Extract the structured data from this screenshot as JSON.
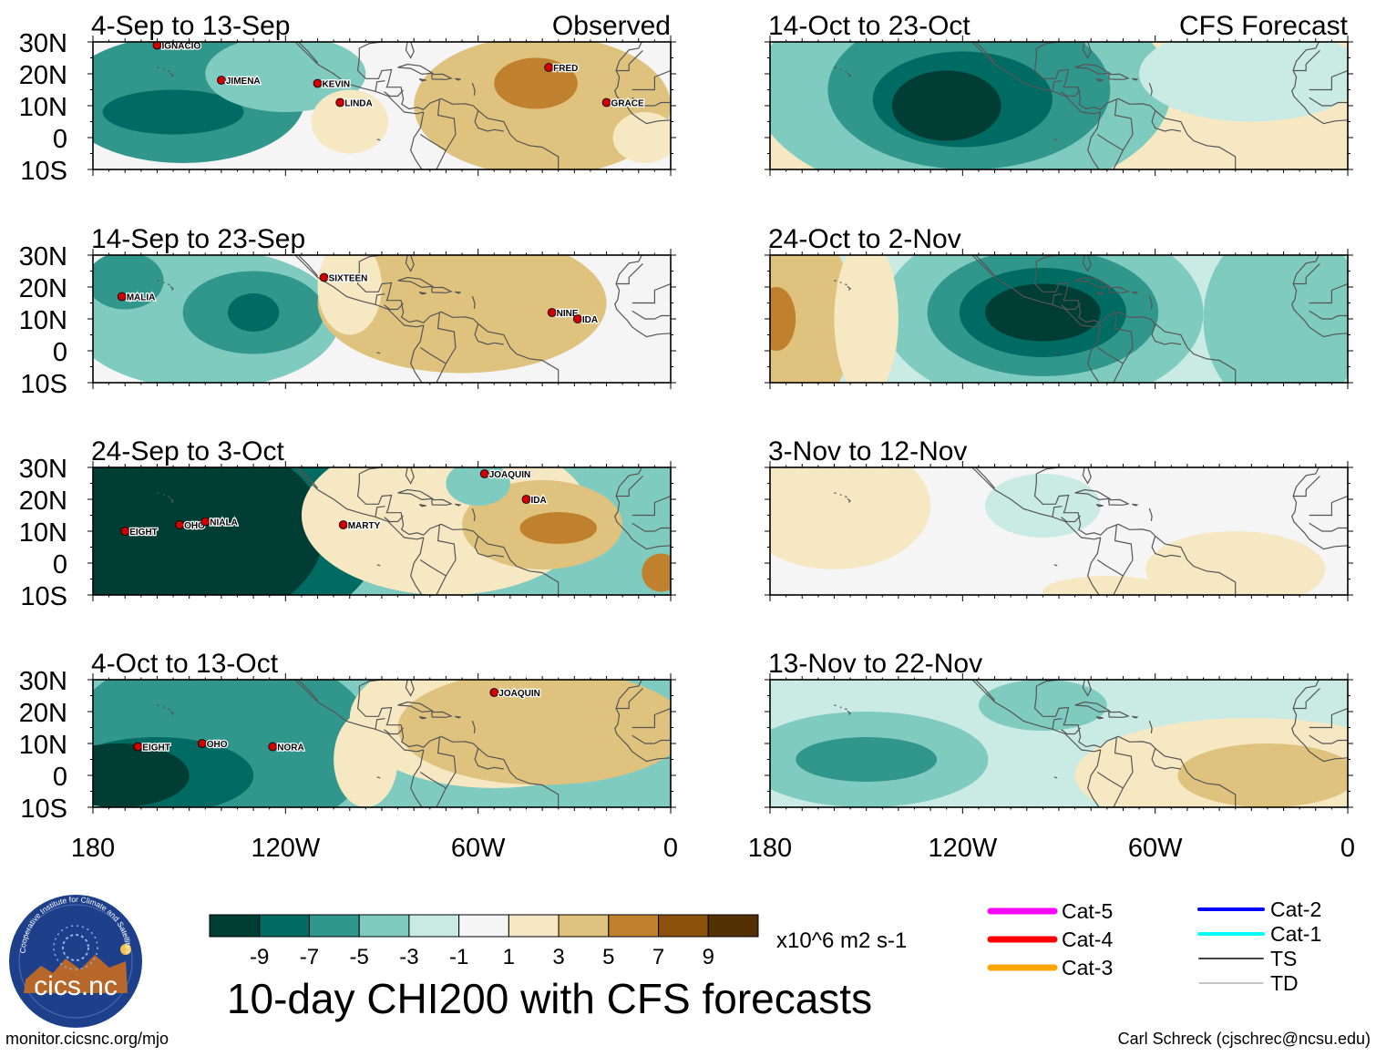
{
  "labels": {
    "observed": "Observed",
    "forecast": "CFS Forecast",
    "main_title": "10-day CHI200 with CFS forecasts",
    "units": "x10^6 m2 s-1",
    "logo_text": "cics.nc",
    "logo_arc": "Cooperative Institute for Climate and Satellites",
    "url": "monitor.cicsnc.org/mjo",
    "author": "Carl Schreck (cjschrec@ncsu.edu)"
  },
  "axes": {
    "lat_ticks": [
      "30N",
      "20N",
      "10N",
      "0",
      "10S"
    ],
    "lon_ticks": [
      "180",
      "120W",
      "60W",
      "0"
    ]
  },
  "colorbar": {
    "colors": [
      "#003e35",
      "#006b63",
      "#31968c",
      "#7fcbbf",
      "#c9ebe3",
      "#f5f5f5",
      "#f6e8c3",
      "#dfc27d",
      "#bf812d",
      "#8c510a",
      "#543005"
    ],
    "ticks": [
      "-9",
      "-7",
      "-5",
      "-3",
      "-1",
      "1",
      "3",
      "5",
      "7",
      "9"
    ]
  },
  "legend": [
    {
      "label": "Cat-5",
      "color": "#ff00ff",
      "width": 7
    },
    {
      "label": "Cat-4",
      "color": "#ff0000",
      "width": 7
    },
    {
      "label": "Cat-3",
      "color": "#ffa500",
      "width": 7
    },
    {
      "label": "Cat-2",
      "color": "#0000ff",
      "width": 4
    },
    {
      "label": "Cat-1",
      "color": "#00ffff",
      "width": 4
    },
    {
      "label": "TS",
      "color": "#444444",
      "width": 2
    },
    {
      "label": "TD",
      "color": "#888888",
      "width": 1
    }
  ],
  "chart_data": {
    "type": "map",
    "variable": "10-day CHI200 (200-hPa velocity potential anomaly)",
    "units": "x10^6 m2 s-1",
    "lon_range": [
      -180,
      0
    ],
    "lat_range": [
      -10,
      30
    ],
    "panels": [
      {
        "title": "4-Sep to 13-Sep",
        "kind": "observed",
        "base": 2,
        "blobs": [
          {
            "lon": -152,
            "lat": 12,
            "rx": 38,
            "ry": 20,
            "level": -5
          },
          {
            "lon": -155,
            "lat": 8,
            "rx": 22,
            "ry": 7,
            "level": -7
          },
          {
            "lon": -120,
            "lat": 20,
            "rx": 25,
            "ry": 12,
            "level": -3
          },
          {
            "lon": -100,
            "lat": 5,
            "rx": 12,
            "ry": 10,
            "level": 1
          },
          {
            "lon": -40,
            "lat": 10,
            "rx": 40,
            "ry": 22,
            "level": 3
          },
          {
            "lon": -42,
            "lat": 17,
            "rx": 13,
            "ry": 8,
            "level": 5
          },
          {
            "lon": -8,
            "lat": 0,
            "rx": 10,
            "ry": 8,
            "level": 1
          }
        ],
        "storms": [
          {
            "name": "IGNACIO",
            "lon": -160,
            "lat": 29
          },
          {
            "name": "JIMENA",
            "lon": -140,
            "lat": 18
          },
          {
            "name": "KEVIN",
            "lon": -110,
            "lat": 17
          },
          {
            "name": "LINDA",
            "lon": -103,
            "lat": 11
          },
          {
            "name": "FRED",
            "lon": -38,
            "lat": 22
          },
          {
            "name": "GRACE",
            "lon": -20,
            "lat": 11
          }
        ]
      },
      {
        "title": "14-Sep to 23-Sep",
        "kind": "observed",
        "base": 2,
        "blobs": [
          {
            "lon": -145,
            "lat": 10,
            "rx": 42,
            "ry": 22,
            "level": -3
          },
          {
            "lon": -130,
            "lat": 12,
            "rx": 22,
            "ry": 13,
            "level": -5
          },
          {
            "lon": -170,
            "lat": 22,
            "rx": 12,
            "ry": 9,
            "level": -5
          },
          {
            "lon": -130,
            "lat": 12,
            "rx": 8,
            "ry": 6,
            "level": -7
          },
          {
            "lon": -65,
            "lat": 15,
            "rx": 45,
            "ry": 22,
            "level": 3
          },
          {
            "lon": -100,
            "lat": 20,
            "rx": 10,
            "ry": 15,
            "level": 1
          }
        ],
        "storms": [
          {
            "name": "MALIA",
            "lon": -171,
            "lat": 17
          },
          {
            "name": "SIXTEEN",
            "lon": -108,
            "lat": 23
          },
          {
            "name": "NINE",
            "lon": -37,
            "lat": 12
          },
          {
            "name": "IDA",
            "lon": -29,
            "lat": 10
          }
        ]
      },
      {
        "title": "24-Sep to 3-Oct",
        "kind": "observed",
        "base": -3,
        "blobs": [
          {
            "lon": -145,
            "lat": 10,
            "rx": 55,
            "ry": 35,
            "level": -7
          },
          {
            "lon": -150,
            "lat": 10,
            "rx": 42,
            "ry": 30,
            "level": -9
          },
          {
            "lon": -70,
            "lat": 15,
            "rx": 45,
            "ry": 25,
            "level": 1
          },
          {
            "lon": -40,
            "lat": 12,
            "rx": 25,
            "ry": 14,
            "level": 3
          },
          {
            "lon": -35,
            "lat": 11,
            "rx": 12,
            "ry": 5,
            "level": 5
          },
          {
            "lon": -3,
            "lat": -3,
            "rx": 6,
            "ry": 6,
            "level": 5
          },
          {
            "lon": -60,
            "lat": 25,
            "rx": 10,
            "ry": 7,
            "level": -3
          }
        ],
        "storms": [
          {
            "name": "JOAQUIN",
            "lon": -58,
            "lat": 28
          },
          {
            "name": "IDA",
            "lon": -45,
            "lat": 20
          },
          {
            "name": "EIGHT",
            "lon": -170,
            "lat": 10
          },
          {
            "name": "OHO",
            "lon": -153,
            "lat": 12
          },
          {
            "name": "NIALA",
            "lon": -145,
            "lat": 13
          },
          {
            "name": "MARTY",
            "lon": -102,
            "lat": 12
          }
        ]
      },
      {
        "title": "4-Oct to 13-Oct",
        "kind": "observed",
        "base": -3,
        "blobs": [
          {
            "lon": -140,
            "lat": 10,
            "rx": 48,
            "ry": 30,
            "level": -5
          },
          {
            "lon": -160,
            "lat": 0,
            "rx": 30,
            "ry": 12,
            "level": -7
          },
          {
            "lon": -172,
            "lat": 0,
            "rx": 22,
            "ry": 10,
            "level": -9
          },
          {
            "lon": -55,
            "lat": 18,
            "rx": 45,
            "ry": 22,
            "level": 1
          },
          {
            "lon": -40,
            "lat": 15,
            "rx": 45,
            "ry": 18,
            "level": 3
          },
          {
            "lon": -95,
            "lat": 5,
            "rx": 10,
            "ry": 15,
            "level": 1
          }
        ],
        "storms": [
          {
            "name": "JOAQUIN",
            "lon": -55,
            "lat": 26
          },
          {
            "name": "EIGHT",
            "lon": -166,
            "lat": 9
          },
          {
            "name": "OHO",
            "lon": -146,
            "lat": 10
          },
          {
            "name": "NORA",
            "lon": -124,
            "lat": 9
          }
        ]
      },
      {
        "title": "14-Oct to 23-Oct",
        "kind": "forecast",
        "base": 1,
        "blobs": [
          {
            "lon": -120,
            "lat": 15,
            "rx": 65,
            "ry": 35,
            "level": -3
          },
          {
            "lon": -118,
            "lat": 15,
            "rx": 44,
            "ry": 25,
            "level": -5
          },
          {
            "lon": -120,
            "lat": 12,
            "rx": 28,
            "ry": 15,
            "level": -7
          },
          {
            "lon": -125,
            "lat": 10,
            "rx": 17,
            "ry": 11,
            "level": -9
          },
          {
            "lon": -30,
            "lat": 20,
            "rx": 35,
            "ry": 15,
            "level": -1
          }
        ]
      },
      {
        "title": "24-Oct to 2-Nov",
        "kind": "forecast",
        "base": -1,
        "blobs": [
          {
            "lon": -95,
            "lat": 12,
            "rx": 50,
            "ry": 30,
            "level": -3
          },
          {
            "lon": -95,
            "lat": 12,
            "rx": 36,
            "ry": 20,
            "level": -5
          },
          {
            "lon": -95,
            "lat": 12,
            "rx": 26,
            "ry": 14,
            "level": -7
          },
          {
            "lon": -95,
            "lat": 12,
            "rx": 18,
            "ry": 9,
            "level": -9
          },
          {
            "lon": -172,
            "lat": 10,
            "rx": 18,
            "ry": 30,
            "level": 3
          },
          {
            "lon": -178,
            "lat": 10,
            "rx": 6,
            "ry": 10,
            "level": 5
          },
          {
            "lon": -20,
            "lat": 10,
            "rx": 25,
            "ry": 30,
            "level": -3
          },
          {
            "lon": -150,
            "lat": 10,
            "rx": 10,
            "ry": 25,
            "level": 1
          }
        ]
      },
      {
        "title": "3-Nov to 12-Nov",
        "kind": "forecast",
        "base": 0,
        "blobs": [
          {
            "lon": -160,
            "lat": 18,
            "rx": 30,
            "ry": 20,
            "level": 1
          },
          {
            "lon": -95,
            "lat": 18,
            "rx": 18,
            "ry": 10,
            "level": -1
          },
          {
            "lon": -35,
            "lat": -2,
            "rx": 28,
            "ry": 12,
            "level": 1
          },
          {
            "lon": -75,
            "lat": -9,
            "rx": 20,
            "ry": 5,
            "level": 1
          }
        ]
      },
      {
        "title": "13-Nov to 22-Nov",
        "kind": "forecast",
        "base": -1,
        "blobs": [
          {
            "lon": -150,
            "lat": 5,
            "rx": 38,
            "ry": 15,
            "level": -3
          },
          {
            "lon": -150,
            "lat": 5,
            "rx": 22,
            "ry": 7,
            "level": -5
          },
          {
            "lon": -95,
            "lat": 22,
            "rx": 20,
            "ry": 8,
            "level": -3
          },
          {
            "lon": -30,
            "lat": 0,
            "rx": 55,
            "ry": 18,
            "level": 1
          },
          {
            "lon": -25,
            "lat": 0,
            "rx": 28,
            "ry": 10,
            "level": 3
          },
          {
            "lon": -60,
            "lat": 5,
            "rx": 8,
            "ry": 8,
            "level": 1
          }
        ]
      }
    ]
  }
}
